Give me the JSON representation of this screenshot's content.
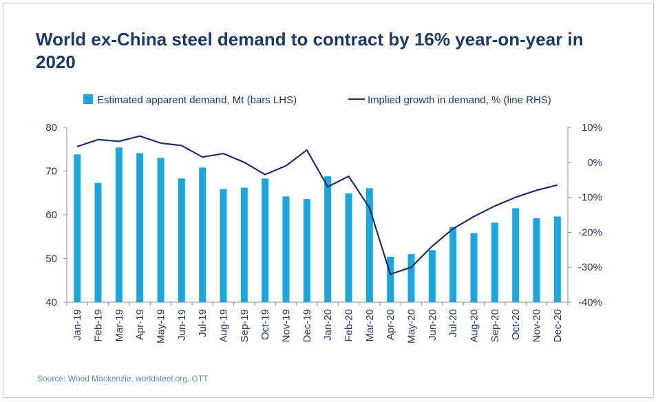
{
  "title": "World ex-China steel demand to contract by 16% year-on-year in 2020",
  "source": "Source: Wood Mackenzie, worldsteel.org, GTT",
  "colors": {
    "bar": "#1aa7e0",
    "line": "#1c2e6e",
    "title": "#1b3a6b",
    "axis_text": "#1f3b6e"
  },
  "chart_data": {
    "type": "bar",
    "title": "World ex-China steel demand to contract by 16% year-on-year in 2020",
    "categories": [
      "Jan-19",
      "Feb-19",
      "Mar-19",
      "Apr-19",
      "May-19",
      "Jun-19",
      "Jul-19",
      "Aug-19",
      "Sep-19",
      "Oct-19",
      "Nov-19",
      "Dec-19",
      "Jan-20",
      "Feb-20",
      "Mar-20",
      "Apr-20",
      "May-20",
      "Jun-20",
      "Jul-20",
      "Aug-20",
      "Sep-20",
      "Oct-20",
      "Nov-20",
      "Dec-20"
    ],
    "series": [
      {
        "name": "Estimated apparent demand, Mt (bars LHS)",
        "type": "bar",
        "axis": "left",
        "values": [
          73.8,
          67.3,
          75.4,
          74.1,
          73.0,
          68.3,
          70.8,
          65.9,
          66.2,
          68.3,
          64.2,
          63.6,
          68.8,
          64.9,
          66.1,
          50.4,
          51.0,
          51.9,
          57.2,
          55.8,
          58.2,
          61.5,
          59.2,
          59.6
        ]
      },
      {
        "name": "Implied growth in demand, % (line RHS)",
        "type": "line",
        "axis": "right",
        "values": [
          4.5,
          6.5,
          6.0,
          7.5,
          5.5,
          4.8,
          1.5,
          2.5,
          0.0,
          -3.5,
          -1.0,
          3.5,
          -7.0,
          -4.0,
          -13.0,
          -32.0,
          -30.0,
          -24.0,
          -19.0,
          -15.5,
          -12.5,
          -10.0,
          -8.0,
          -6.5
        ]
      }
    ],
    "y_left": {
      "ylim": [
        40,
        80
      ],
      "ticks": [
        "40",
        "50",
        "60",
        "70",
        "80"
      ]
    },
    "y_right": {
      "ylim": [
        -40,
        10
      ],
      "ticks": [
        "-40%",
        "-30%",
        "-20%",
        "-10%",
        "0%",
        "10%"
      ]
    },
    "legend": {
      "placement": "top",
      "items": [
        "Estimated apparent demand, Mt (bars LHS)",
        "Implied growth in demand, % (line RHS)"
      ]
    },
    "grid": false
  }
}
